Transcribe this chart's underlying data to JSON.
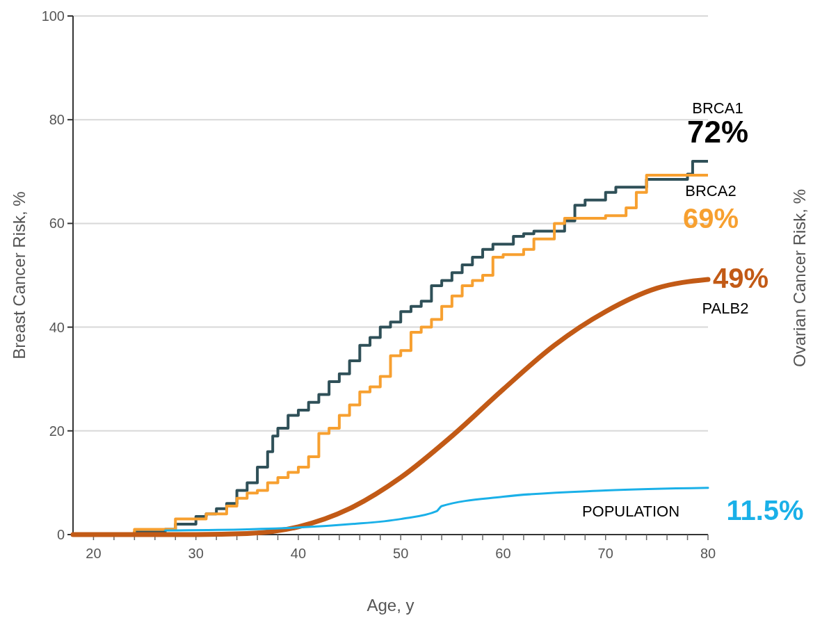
{
  "chart_data": {
    "type": "line",
    "xlabel": "Age, y",
    "ylabel": "Breast Cancer Risk, %",
    "y2label": "Ovarian Cancer Risk, %",
    "xlim": [
      18,
      80
    ],
    "ylim": [
      0,
      100
    ],
    "xticks": [
      20,
      {
        "value": 22,
        "label": null
      },
      {
        "value": 24,
        "label": null
      },
      {
        "value": 26,
        "label": null
      },
      {
        "value": 28,
        "label": null
      },
      30,
      {
        "value": 32,
        "label": null
      },
      {
        "value": 34,
        "label": null
      },
      {
        "value": 36,
        "label": null
      },
      {
        "value": 38,
        "label": null
      },
      40,
      {
        "value": 42,
        "label": null
      },
      {
        "value": 44,
        "label": null
      },
      {
        "value": 46,
        "label": null
      },
      {
        "value": 48,
        "label": null
      },
      50,
      {
        "value": 52,
        "label": null
      },
      {
        "value": 54,
        "label": null
      },
      {
        "value": 56,
        "label": null
      },
      {
        "value": 58,
        "label": null
      },
      60,
      {
        "value": 62,
        "label": null
      },
      {
        "value": 64,
        "label": null
      },
      {
        "value": 66,
        "label": null
      },
      {
        "value": 68,
        "label": null
      },
      70,
      {
        "value": 72,
        "label": null
      },
      {
        "value": 74,
        "label": null
      },
      {
        "value": 76,
        "label": null
      },
      {
        "value": 78,
        "label": null
      },
      80
    ],
    "yticks": [
      0,
      20,
      40,
      60,
      80,
      100
    ],
    "grid": "y",
    "series": [
      {
        "name": "BRCA1",
        "type": "step",
        "color": "#2f5058",
        "x": [
          18,
          24,
          27,
          28,
          30,
          31,
          32,
          33,
          34,
          35,
          36,
          37,
          37.5,
          38,
          39,
          40,
          41,
          42,
          43,
          44,
          45,
          46,
          47,
          48,
          49,
          50,
          51,
          52,
          53,
          54,
          55,
          56,
          57,
          58,
          59,
          61,
          62,
          63,
          66,
          67,
          68,
          70,
          71,
          74,
          78,
          78.5,
          80
        ],
        "values": [
          0,
          0.5,
          1,
          2,
          3.5,
          4,
          5,
          6,
          8.5,
          10,
          13,
          16,
          19,
          20.5,
          23,
          24,
          25.5,
          27,
          29.5,
          31,
          33.5,
          36.5,
          38,
          40,
          41,
          43,
          44,
          45,
          48,
          49,
          50.5,
          52,
          53.5,
          55,
          56,
          57.5,
          58,
          58.5,
          60.5,
          63.5,
          64.5,
          66,
          67,
          68.5,
          69.5,
          72,
          72
        ]
      },
      {
        "name": "BRCA2",
        "type": "step",
        "color": "#f7a030",
        "x": [
          18,
          24,
          28,
          31,
          33,
          34,
          35,
          36,
          37,
          38,
          39,
          40,
          41,
          42,
          43,
          44,
          45,
          46,
          47,
          48,
          49,
          50,
          51,
          52,
          53,
          54,
          55,
          56,
          57,
          58,
          59,
          60,
          62,
          63,
          65,
          66,
          70,
          72,
          73,
          74,
          80
        ],
        "values": [
          0,
          1,
          3,
          4,
          5.5,
          7,
          8,
          8.5,
          10,
          11,
          12,
          13,
          15,
          19.5,
          20.5,
          23,
          25,
          27.5,
          28.5,
          30.5,
          34.5,
          35.5,
          39,
          40,
          41.5,
          44,
          46,
          48,
          49,
          50,
          53.5,
          54,
          55,
          57,
          60,
          61,
          61.5,
          63,
          66,
          69.3,
          69.3
        ]
      },
      {
        "name": "PALB2",
        "color": "#c25a16",
        "x": [
          18,
          25,
          30,
          35,
          40,
          45,
          50,
          55,
          60,
          65,
          70,
          75,
          80
        ],
        "values": [
          0,
          0,
          0,
          0.2,
          1.5,
          5,
          11,
          19,
          28,
          36.5,
          43,
          47.5,
          49.2
        ]
      },
      {
        "name": "POPULATION",
        "color": "#1ab0e8",
        "x": [
          27,
          35,
          45,
          50,
          53.5,
          54,
          60,
          70,
          80
        ],
        "values": [
          0.8,
          1,
          2,
          3,
          4.5,
          5.5,
          7.3,
          8.5,
          9
        ]
      }
    ],
    "annotations": [
      "72%",
      "69%",
      "49%",
      "11.5%"
    ]
  }
}
